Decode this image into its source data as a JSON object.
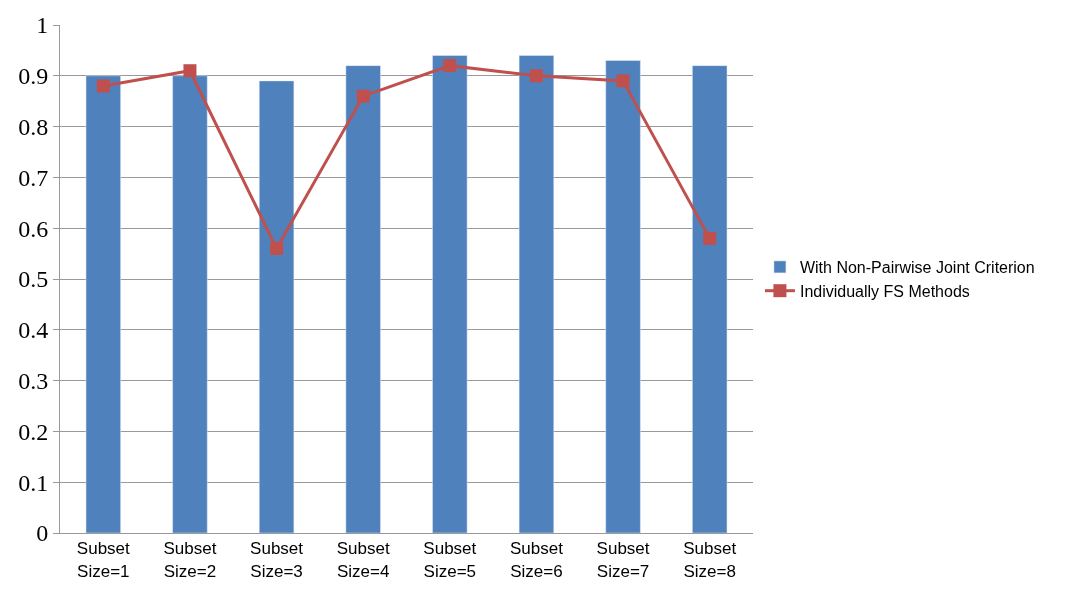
{
  "chart_data": {
    "type": "bar",
    "categories": [
      "Subset\nSize=1",
      "Subset\nSize=2",
      "Subset\nSize=3",
      "Subset\nSize=4",
      "Subset\nSize=5",
      "Subset\nSize=6",
      "Subset\nSize=7",
      "Subset\nSize=8"
    ],
    "series": [
      {
        "name": "With Non-Pairwise Joint Criterion",
        "color": "#4f81bd",
        "values": [
          0.9,
          0.9,
          0.89,
          0.92,
          0.94,
          0.94,
          0.93,
          0.92
        ]
      },
      {
        "name": "Individually FS Methods",
        "type": "line",
        "color": "#c0504d",
        "marker": "square",
        "values": [
          0.88,
          0.91,
          0.56,
          0.86,
          0.92,
          0.9,
          0.89,
          0.58
        ]
      }
    ],
    "ylim": [
      0,
      1
    ],
    "yticks": [
      0,
      0.1,
      0.2,
      0.3,
      0.4,
      0.5,
      0.6,
      0.7,
      0.8,
      0.9,
      1
    ],
    "grid": "y",
    "legend": "right"
  }
}
